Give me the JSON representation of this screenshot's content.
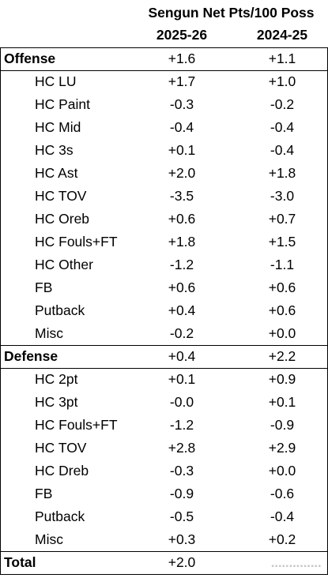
{
  "table": {
    "title": "Sengun Net Pts/100 Poss",
    "columns": [
      "2025-26",
      "2024-25"
    ],
    "rows": [
      {
        "label": "Offense",
        "level": 0,
        "v1": "+1.6",
        "v2": "+1.1"
      },
      {
        "label": "HC LU",
        "level": 1,
        "v1": "+1.7",
        "v2": "+1.0"
      },
      {
        "label": "HC Paint",
        "level": 1,
        "v1": "-0.3",
        "v2": "-0.2"
      },
      {
        "label": "HC Mid",
        "level": 1,
        "v1": "-0.4",
        "v2": "-0.4"
      },
      {
        "label": "HC 3s",
        "level": 1,
        "v1": "+0.1",
        "v2": "-0.4"
      },
      {
        "label": "HC Ast",
        "level": 1,
        "v1": "+2.0",
        "v2": "+1.8"
      },
      {
        "label": "HC TOV",
        "level": 1,
        "v1": "-3.5",
        "v2": "-3.0"
      },
      {
        "label": "HC Oreb",
        "level": 1,
        "v1": "+0.6",
        "v2": "+0.7"
      },
      {
        "label": "HC Fouls+FT",
        "level": 1,
        "v1": "+1.8",
        "v2": "+1.5"
      },
      {
        "label": "HC Other",
        "level": 1,
        "v1": "-1.2",
        "v2": "-1.1"
      },
      {
        "label": "FB",
        "level": 1,
        "v1": "+0.6",
        "v2": "+0.6"
      },
      {
        "label": "Putback",
        "level": 1,
        "v1": "+0.4",
        "v2": "+0.6"
      },
      {
        "label": "Misc",
        "level": 1,
        "v1": "-0.2",
        "v2": "+0.0"
      },
      {
        "label": "Defense",
        "level": 0,
        "v1": "+0.4",
        "v2": "+2.2"
      },
      {
        "label": "HC 2pt",
        "level": 1,
        "v1": "+0.1",
        "v2": "+0.9"
      },
      {
        "label": "HC 3pt",
        "level": 1,
        "v1": "-0.0",
        "v2": "+0.1"
      },
      {
        "label": "HC Fouls+FT",
        "level": 1,
        "v1": "-1.2",
        "v2": "-0.9"
      },
      {
        "label": "HC TOV",
        "level": 1,
        "v1": "+2.8",
        "v2": "+2.9"
      },
      {
        "label": "HC Dreb",
        "level": 1,
        "v1": "-0.3",
        "v2": "+0.0"
      },
      {
        "label": "FB",
        "level": 1,
        "v1": "-0.9",
        "v2": "-0.6"
      },
      {
        "label": "Putback",
        "level": 1,
        "v1": "-0.5",
        "v2": "-0.4"
      },
      {
        "label": "Misc",
        "level": 1,
        "v1": "+0.3",
        "v2": "+0.2"
      },
      {
        "label": "Total",
        "level": 0,
        "v1": "+2.0",
        "v2": ""
      }
    ]
  }
}
